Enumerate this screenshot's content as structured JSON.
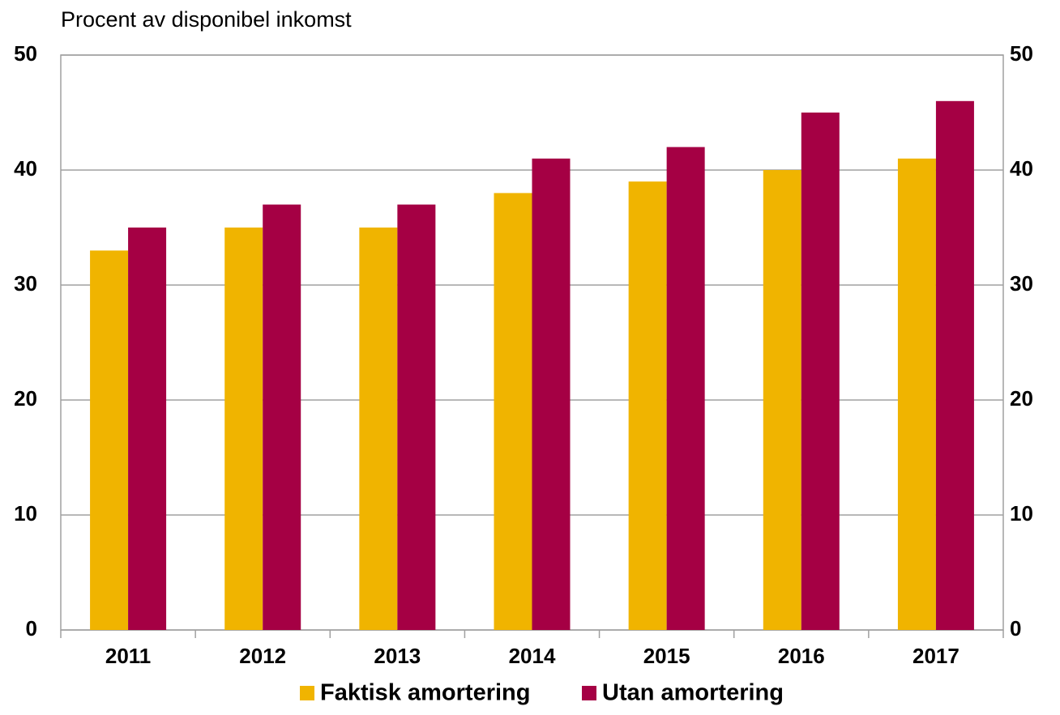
{
  "chart_data": {
    "type": "bar",
    "subtitle": "Procent av disponibel inkomst",
    "categories": [
      "2011",
      "2012",
      "2013",
      "2014",
      "2015",
      "2016",
      "2017"
    ],
    "series": [
      {
        "name": "Faktisk amortering",
        "color": "#f0b400",
        "values": [
          33,
          35,
          35,
          38,
          39,
          40,
          41
        ]
      },
      {
        "name": "Utan amortering",
        "color": "#a50044",
        "values": [
          35,
          37,
          37,
          41,
          42,
          45,
          46
        ]
      }
    ],
    "ylim": [
      0,
      50
    ],
    "yticks": [
      0,
      10,
      20,
      30,
      40,
      50
    ],
    "y2lim": [
      0,
      50
    ],
    "y2ticks": [
      0,
      10,
      20,
      30,
      40,
      50
    ],
    "grid": true,
    "legend": "bottom"
  }
}
